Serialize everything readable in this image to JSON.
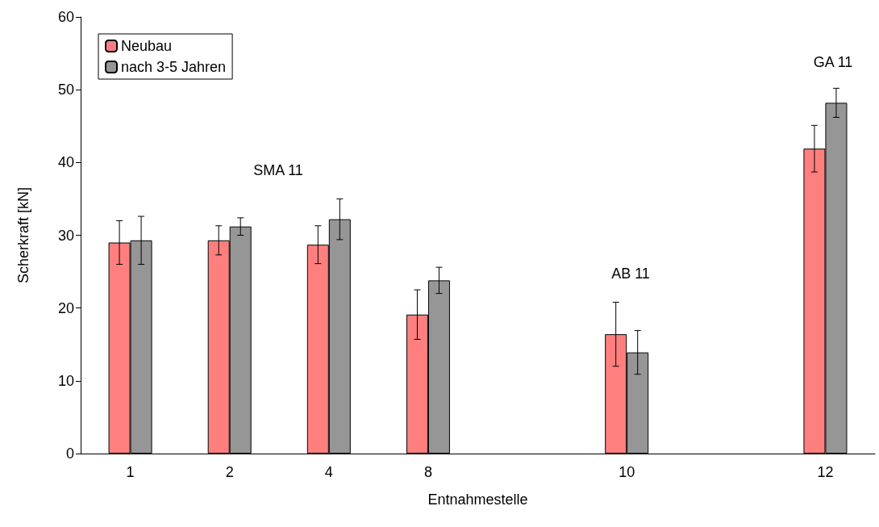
{
  "chart_data": {
    "type": "bar",
    "xlabel": "Entnahmestelle",
    "ylabel": "Scherkraft [kN]",
    "categories": [
      "1",
      "2",
      "4",
      "8",
      null,
      "10",
      null,
      "12"
    ],
    "series": [
      {
        "name": "Neubau",
        "color": "#ff7f7f",
        "values": [
          29.0,
          29.3,
          28.7,
          19.1,
          null,
          16.4,
          null,
          41.9
        ],
        "errors": [
          3.0,
          2.0,
          2.6,
          3.4,
          null,
          4.4,
          null,
          3.2
        ]
      },
      {
        "name": "nach 3-5 Jahren",
        "color": "#969696",
        "values": [
          29.3,
          31.2,
          32.2,
          23.8,
          null,
          13.9,
          null,
          48.2
        ],
        "errors": [
          3.3,
          1.2,
          2.8,
          1.8,
          null,
          3.0,
          null,
          2.0
        ]
      }
    ],
    "ylim": [
      0,
      60
    ],
    "yticks": [
      0,
      10,
      20,
      30,
      40,
      50,
      60
    ],
    "grid": false,
    "legend": "top left",
    "annotations": [
      "SMA 11",
      "AB 11",
      "GA 11"
    ]
  }
}
